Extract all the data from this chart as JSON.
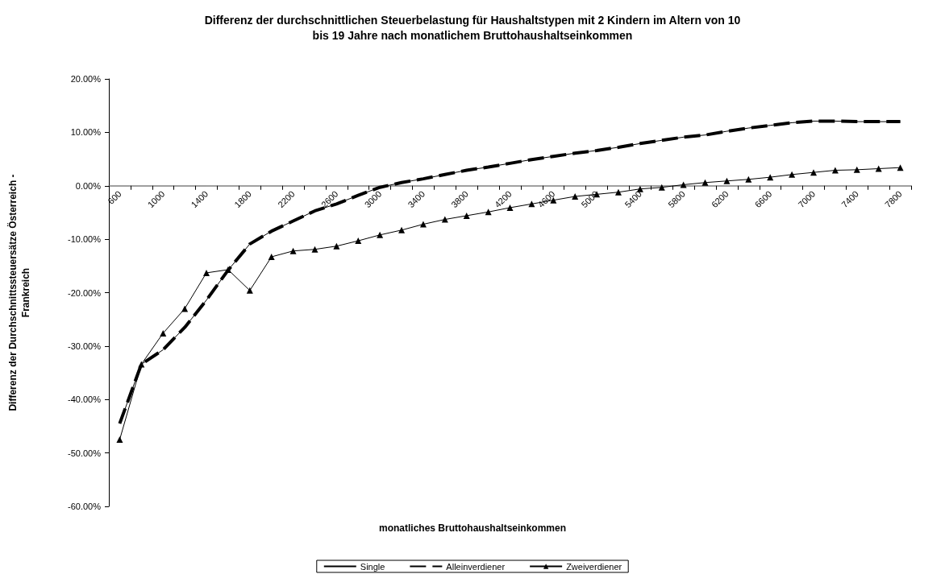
{
  "chart_data": {
    "type": "line",
    "title": "Differenz der durchschnittlichen Steuerbelastung für Haushaltstypen mit 2 Kindern im Altern von 10\nbis 19 Jahre nach monatlichem Bruttohaushaltseinkommen",
    "xlabel": "monatliches Bruttohaushaltseinkommen",
    "ylabel": "Differenz der Durchschnittssteuersätze Österreich -\nFrankreich",
    "categories": [
      "600",
      null,
      "1000",
      null,
      "1400",
      null,
      "1800",
      null,
      "2200",
      null,
      "2600",
      null,
      "3000",
      null,
      "3400",
      null,
      "3800",
      null,
      "4200",
      null,
      "4600",
      null,
      "5000",
      null,
      "5400",
      null,
      "5800",
      null,
      "6200",
      null,
      "6600",
      null,
      "7000",
      null,
      "7400",
      null,
      "7800"
    ],
    "ylim": [
      -60,
      20
    ],
    "yticks": [
      {
        "value": -60,
        "label": "-60.00%"
      },
      {
        "value": -50,
        "label": "-50.00%"
      },
      {
        "value": -40,
        "label": "-40.00%"
      },
      {
        "value": -30,
        "label": "-30.00%"
      },
      {
        "value": -20,
        "label": "-20.00%"
      },
      {
        "value": -10,
        "label": "-10.00%"
      },
      {
        "value": 0,
        "label": "0.00%"
      },
      {
        "value": 10,
        "label": "10.00%"
      },
      {
        "value": 20,
        "label": "20.00%"
      }
    ],
    "grid": false,
    "legend": "bottom",
    "series": [
      {
        "name": "Single",
        "color": "#000000",
        "line_style": "solid",
        "marker": "none",
        "values": [
          -44.5,
          -33.4,
          -30.7,
          -26.5,
          -21.4,
          -15.8,
          -10.9,
          -8.5,
          -6.6,
          -4.7,
          -3.4,
          -1.8,
          -0.3,
          0.6,
          1.3,
          2.1,
          2.9,
          3.5,
          4.2,
          4.9,
          5.5,
          6.1,
          6.6,
          7.2,
          7.9,
          8.5,
          9.1,
          9.5,
          10.2,
          10.8,
          11.3,
          11.8,
          12.1,
          12.1,
          12.0,
          12.0,
          12.0
        ]
      },
      {
        "name": "Alleinverdiener",
        "color": "#000000",
        "line_style": "dashed",
        "marker": "none",
        "values": [
          -44.5,
          -33.4,
          -30.7,
          -26.5,
          -21.4,
          -15.8,
          -10.9,
          -8.5,
          -6.6,
          -4.7,
          -3.4,
          -1.8,
          -0.3,
          0.6,
          1.3,
          2.1,
          2.9,
          3.5,
          4.2,
          4.9,
          5.5,
          6.1,
          6.6,
          7.2,
          7.9,
          8.5,
          9.1,
          9.5,
          10.2,
          10.8,
          11.3,
          11.8,
          12.1,
          12.1,
          12.0,
          12.0,
          12.0
        ]
      },
      {
        "name": "Zweiverdiener",
        "color": "#000000",
        "line_style": "solid",
        "marker": "triangle",
        "values": [
          -47.5,
          -33.4,
          -27.6,
          -23.0,
          -16.3,
          -15.7,
          -19.6,
          -13.3,
          -12.2,
          -11.9,
          -11.3,
          -10.3,
          -9.2,
          -8.3,
          -7.2,
          -6.3,
          -5.6,
          -4.9,
          -4.1,
          -3.4,
          -2.7,
          -2.0,
          -1.6,
          -1.2,
          -0.6,
          -0.3,
          0.2,
          0.6,
          0.9,
          1.2,
          1.6,
          2.1,
          2.5,
          2.9,
          3.0,
          3.2,
          3.4
        ]
      }
    ]
  }
}
